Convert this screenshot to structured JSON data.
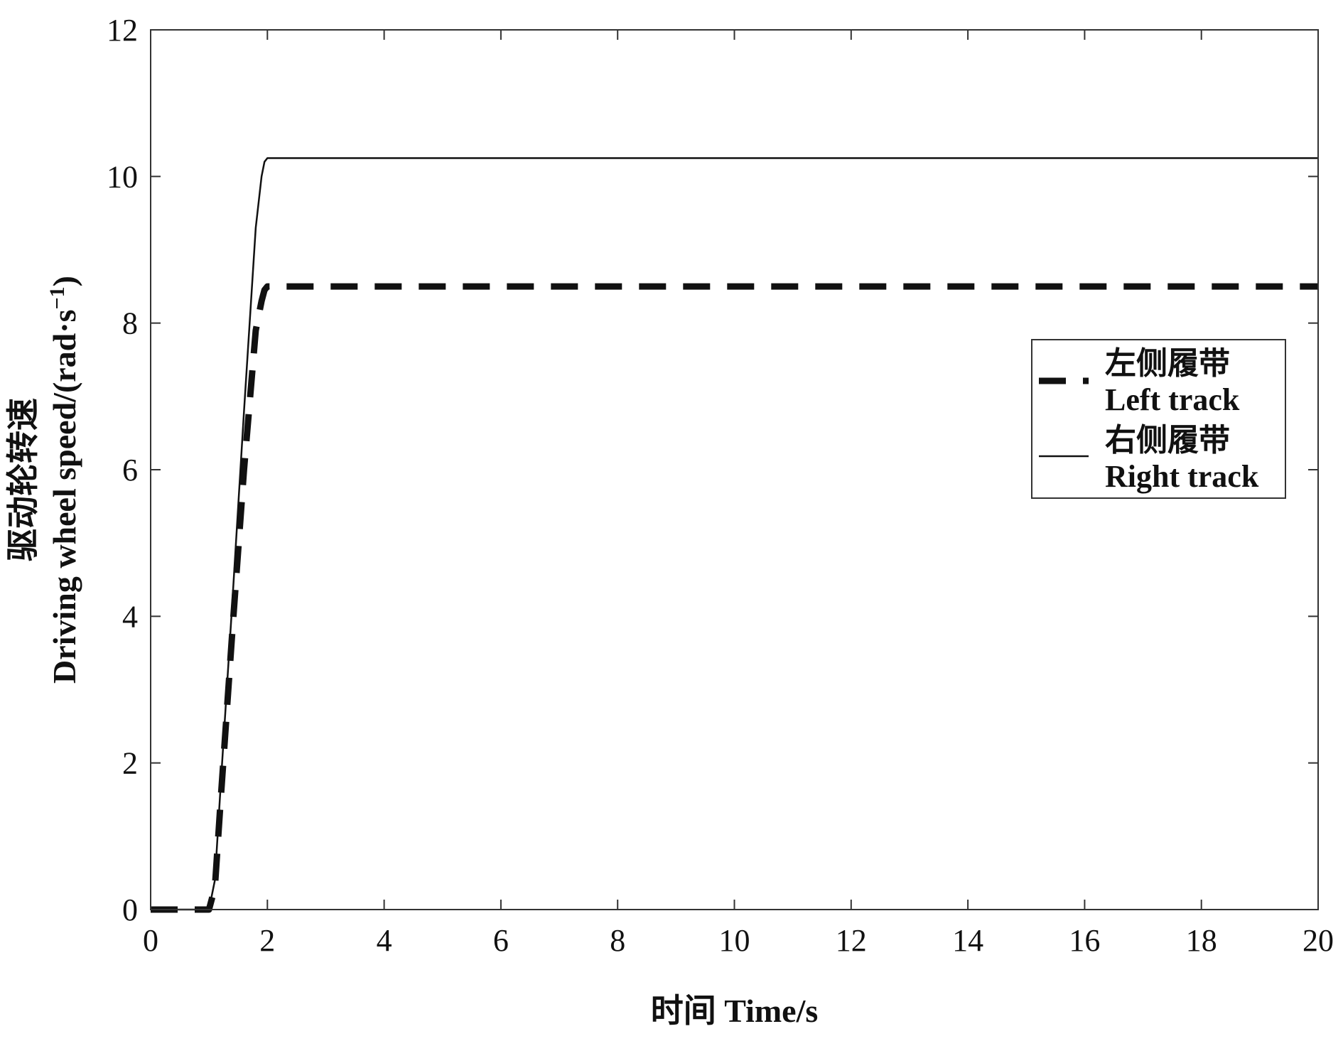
{
  "chart_data": {
    "type": "line",
    "xlabel": "时间 Time/s",
    "ylabel_line1": "驱动轮转速",
    "ylabel_line2": "Driving wheel speed/(rad·s",
    "ylabel_sup": "−1",
    "ylabel_close": ")",
    "xlim": [
      0,
      20
    ],
    "ylim": [
      0,
      12
    ],
    "xticks": [
      "0",
      "2",
      "4",
      "6",
      "8",
      "10",
      "12",
      "14",
      "16",
      "18",
      "20"
    ],
    "yticks": [
      "0",
      "2",
      "4",
      "6",
      "8",
      "10",
      "12"
    ],
    "grid": false,
    "legend_position": "right-center",
    "series": [
      {
        "name_cn": "左侧履带",
        "name_en": "Left track",
        "style": "dashed",
        "color": "#111111",
        "x": [
          0,
          1.0,
          1.1,
          1.2,
          1.4,
          1.6,
          1.8,
          1.9,
          1.95,
          2.0,
          2.1,
          20
        ],
        "y": [
          0,
          0,
          0.3,
          1.5,
          3.8,
          6.0,
          7.9,
          8.3,
          8.45,
          8.5,
          8.5,
          8.5
        ]
      },
      {
        "name_cn": "右侧履带",
        "name_en": "Right track",
        "style": "solid",
        "color": "#111111",
        "x": [
          0,
          1.0,
          1.1,
          1.2,
          1.4,
          1.6,
          1.8,
          1.9,
          1.95,
          2.0,
          20
        ],
        "y": [
          0,
          0,
          0.4,
          1.7,
          4.2,
          6.8,
          9.3,
          10.0,
          10.2,
          10.25,
          10.25
        ]
      }
    ]
  }
}
